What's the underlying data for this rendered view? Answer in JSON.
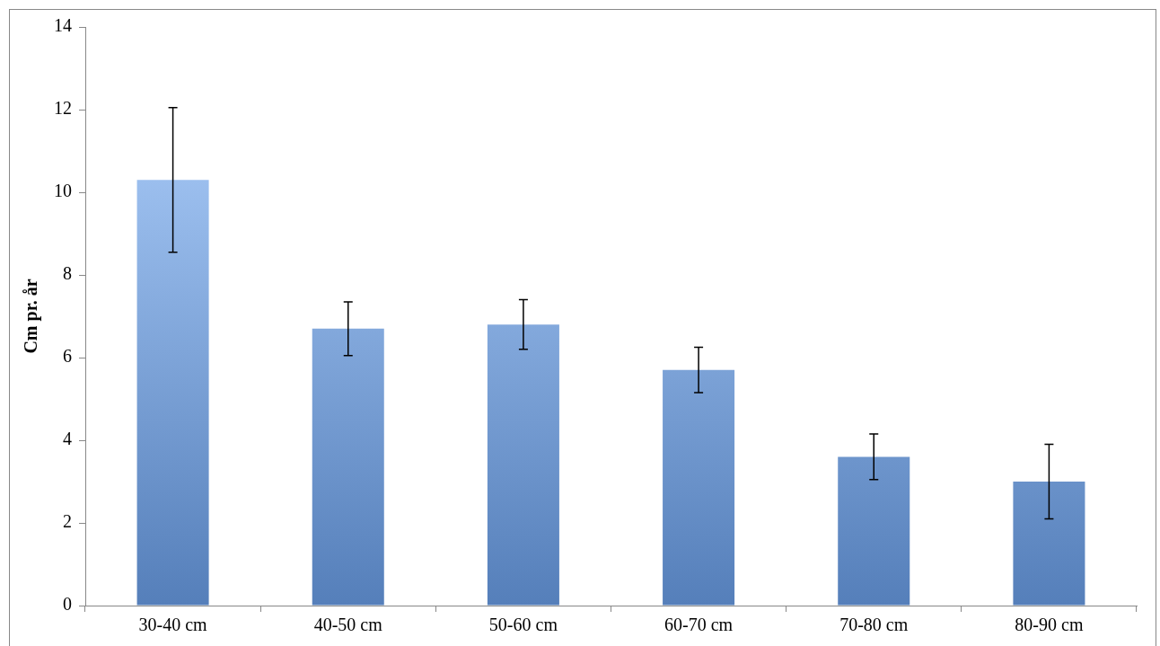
{
  "chart_data": {
    "type": "bar",
    "ylabel": "Cm pr. år",
    "categories": [
      "30-40 cm",
      "40-50 cm",
      "50-60 cm",
      "60-70 cm",
      "70-80 cm",
      "80-90 cm"
    ],
    "values": [
      10.3,
      6.7,
      6.8,
      5.7,
      3.6,
      3.0
    ],
    "errors": [
      1.75,
      0.65,
      0.6,
      0.55,
      0.55,
      0.9
    ],
    "color": "#6a9fe8",
    "ylim": [
      0,
      14
    ],
    "yticks": [
      0,
      2,
      4,
      6,
      8,
      10,
      12,
      14
    ],
    "grid": false,
    "legend": false
  }
}
